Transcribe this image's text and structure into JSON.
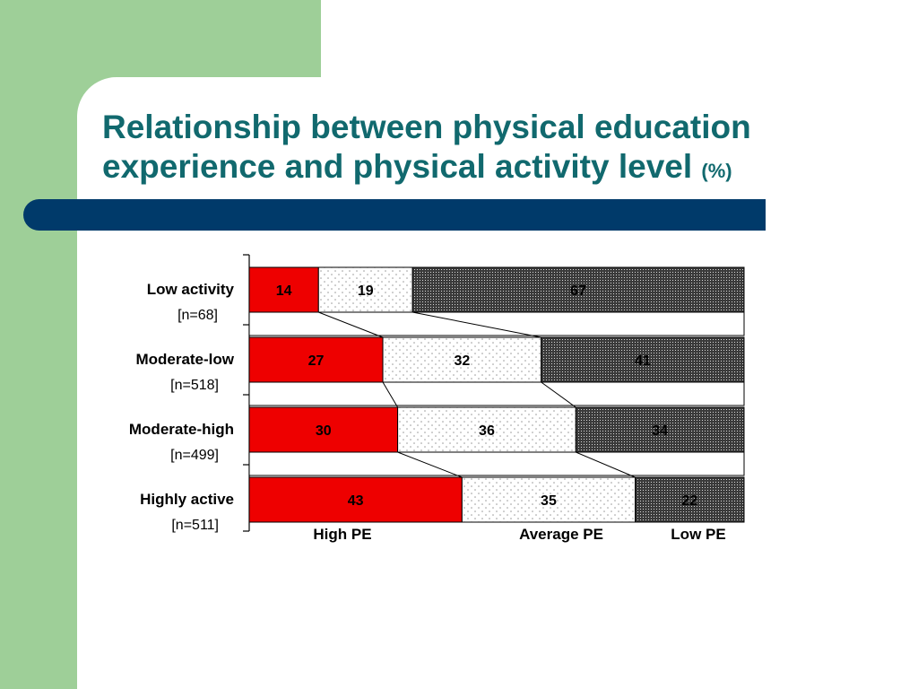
{
  "slide": {
    "title_main": "Relationship between physical education experience and physical activity level",
    "title_unit": "(%)"
  },
  "chart_data": {
    "type": "bar",
    "orientation": "horizontal",
    "stacked": "100%",
    "categories": [
      "Low activity",
      "Moderate-low",
      "Moderate-high",
      "Highly active"
    ],
    "sample_sizes": [
      "[n=68]",
      "[n=518]",
      "[n=499]",
      "[n=511]"
    ],
    "series": [
      {
        "name": "High PE",
        "values": [
          14,
          27,
          30,
          43
        ],
        "color": "#ee0000"
      },
      {
        "name": "Average PE",
        "values": [
          19,
          32,
          36,
          35
        ],
        "color": "#f4f4f4"
      },
      {
        "name": "Low PE",
        "values": [
          67,
          41,
          34,
          22
        ],
        "color": "#555555"
      }
    ],
    "xlim": [
      0,
      100
    ],
    "legend_placement": "bottom",
    "grid": false
  }
}
